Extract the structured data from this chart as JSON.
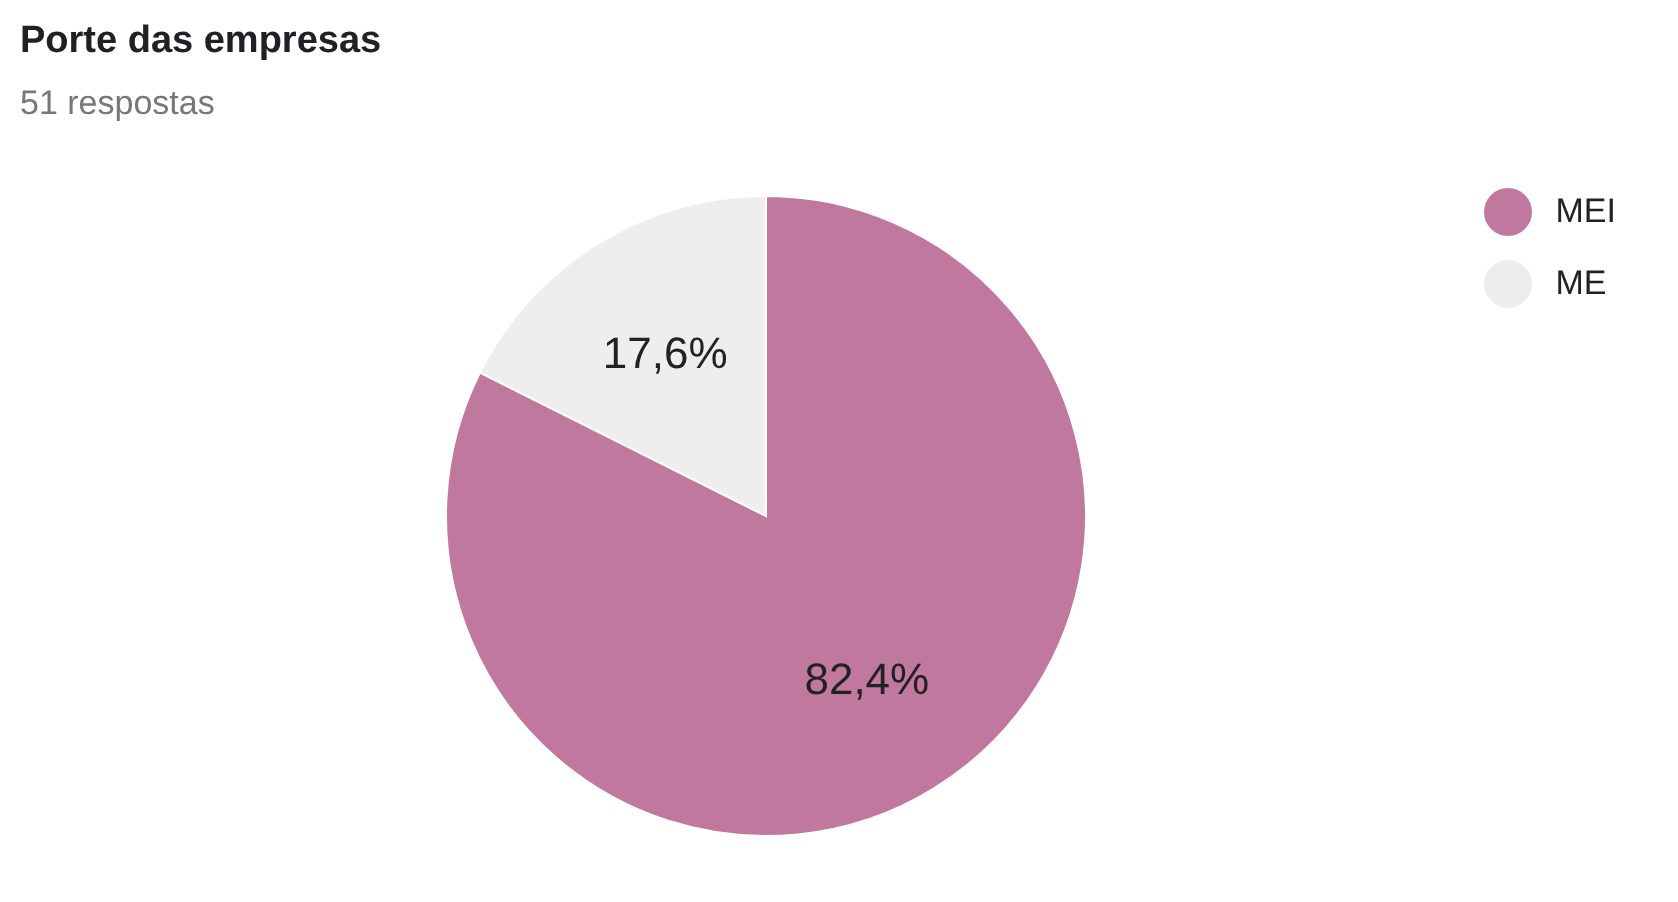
{
  "chart_data": {
    "type": "pie",
    "title": "Porte das empresas",
    "subtitle": "51 respostas",
    "categories": [
      "MEI",
      "ME"
    ],
    "values": [
      82.4,
      17.6
    ],
    "colors": [
      "#c0789f",
      "#eeeeee"
    ],
    "value_labels": [
      "82,4%",
      "17,6%"
    ],
    "legend": "top right"
  }
}
